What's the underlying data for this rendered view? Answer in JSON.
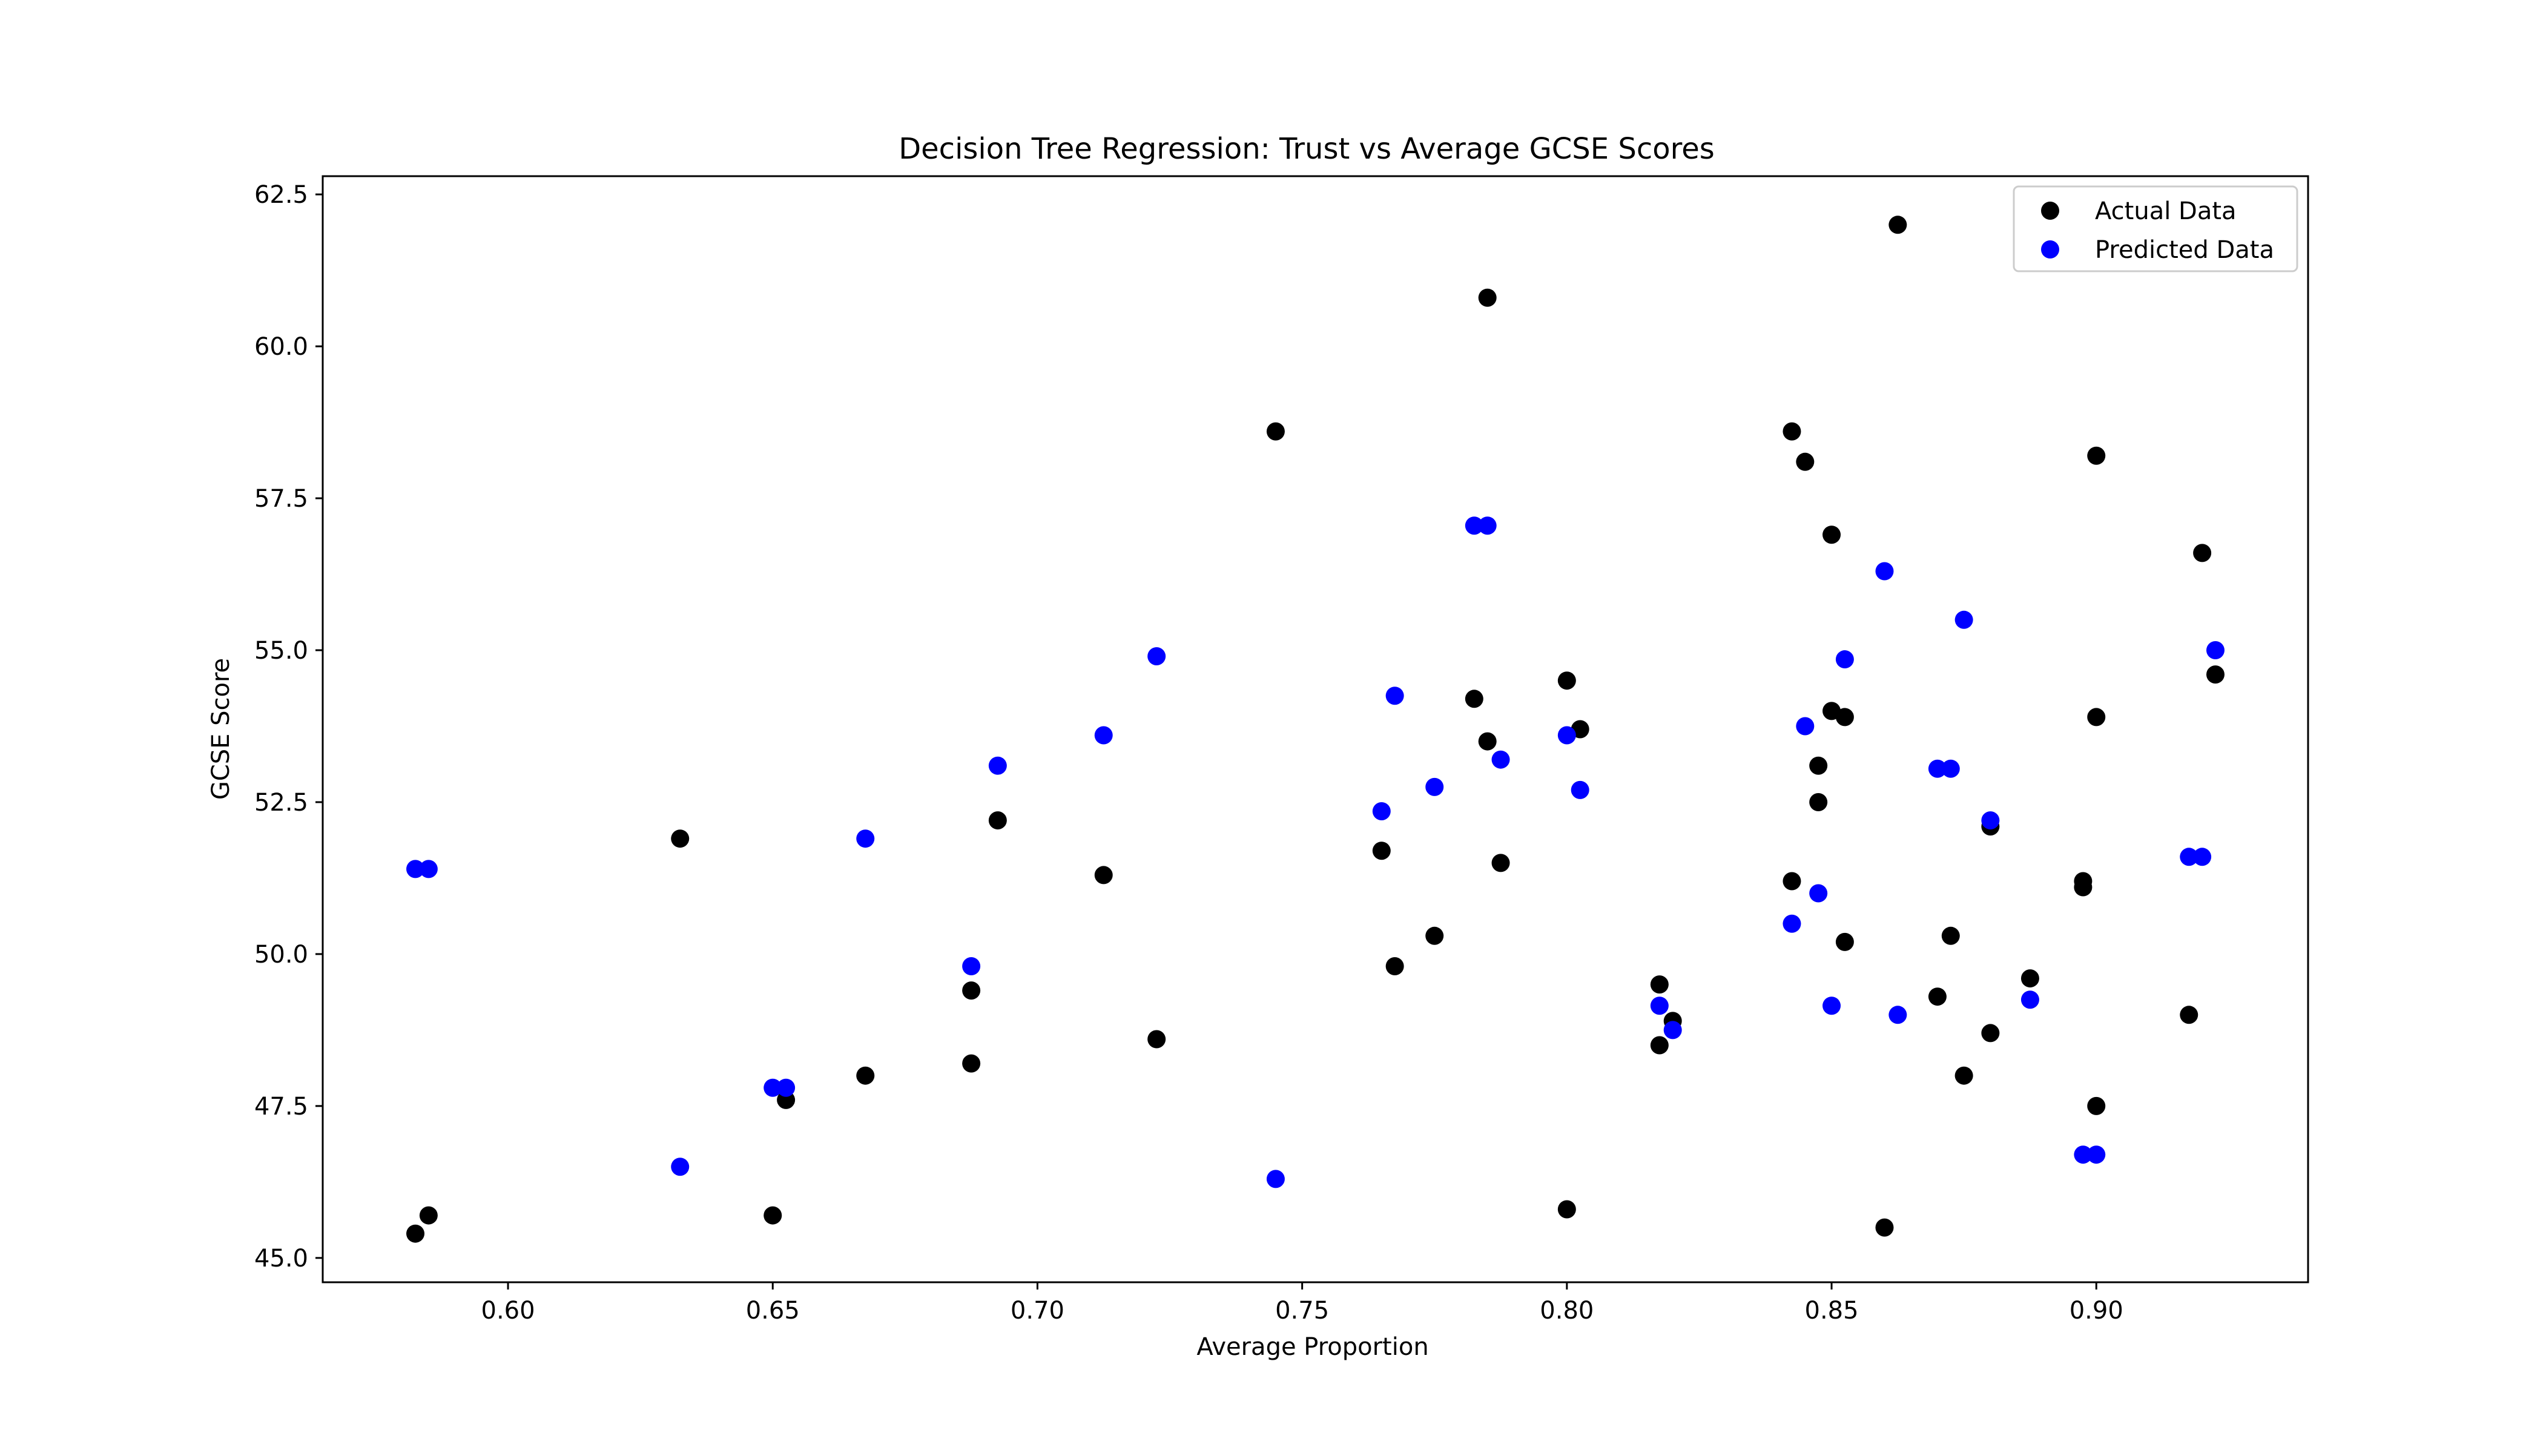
{
  "chart_data": {
    "type": "scatter",
    "title": "Decision Tree Regression: Trust vs Average GCSE Scores",
    "xlabel": "Average Proportion",
    "ylabel": "GCSE Score",
    "xlim": [
      0.565,
      0.94
    ],
    "ylim": [
      44.6,
      62.8
    ],
    "xticks": [
      "0.60",
      "0.65",
      "0.70",
      "0.75",
      "0.80",
      "0.85",
      "0.90"
    ],
    "yticks": [
      "45.0",
      "47.5",
      "50.0",
      "52.5",
      "55.0",
      "57.5",
      "60.0",
      "62.5"
    ],
    "grid": false,
    "legend_position": "top-right",
    "series": [
      {
        "name": "Actual Data",
        "color": "#000000",
        "points": [
          [
            0.5825,
            45.4
          ],
          [
            0.585,
            45.7
          ],
          [
            0.6325,
            51.9
          ],
          [
            0.65,
            45.7
          ],
          [
            0.6525,
            47.6
          ],
          [
            0.6675,
            48.0
          ],
          [
            0.6875,
            48.2
          ],
          [
            0.6875,
            49.4
          ],
          [
            0.6925,
            52.2
          ],
          [
            0.7125,
            51.3
          ],
          [
            0.7225,
            48.6
          ],
          [
            0.745,
            58.6
          ],
          [
            0.765,
            51.7
          ],
          [
            0.7675,
            49.8
          ],
          [
            0.775,
            50.3
          ],
          [
            0.7825,
            54.2
          ],
          [
            0.785,
            53.5
          ],
          [
            0.785,
            60.8
          ],
          [
            0.7875,
            51.5
          ],
          [
            0.8,
            54.5
          ],
          [
            0.8,
            45.8
          ],
          [
            0.8025,
            53.7
          ],
          [
            0.8175,
            49.5
          ],
          [
            0.8175,
            48.5
          ],
          [
            0.82,
            48.9
          ],
          [
            0.8425,
            58.6
          ],
          [
            0.8425,
            51.2
          ],
          [
            0.845,
            58.1
          ],
          [
            0.8475,
            53.1
          ],
          [
            0.8475,
            52.5
          ],
          [
            0.85,
            56.9
          ],
          [
            0.85,
            54.0
          ],
          [
            0.8525,
            53.9
          ],
          [
            0.8525,
            50.2
          ],
          [
            0.86,
            45.5
          ],
          [
            0.8625,
            62.0
          ],
          [
            0.87,
            49.3
          ],
          [
            0.8725,
            50.3
          ],
          [
            0.875,
            48.0
          ],
          [
            0.88,
            52.1
          ],
          [
            0.88,
            48.7
          ],
          [
            0.8875,
            49.6
          ],
          [
            0.8975,
            51.2
          ],
          [
            0.8975,
            51.1
          ],
          [
            0.9,
            58.2
          ],
          [
            0.9,
            53.9
          ],
          [
            0.9,
            47.5
          ],
          [
            0.9175,
            49.0
          ],
          [
            0.92,
            56.6
          ],
          [
            0.9225,
            54.6
          ]
        ]
      },
      {
        "name": "Predicted Data",
        "color": "#0000ff",
        "points": [
          [
            0.5825,
            51.4
          ],
          [
            0.585,
            51.4
          ],
          [
            0.6325,
            46.5
          ],
          [
            0.65,
            47.8
          ],
          [
            0.6525,
            47.8
          ],
          [
            0.6675,
            51.9
          ],
          [
            0.6875,
            49.8
          ],
          [
            0.6925,
            53.1
          ],
          [
            0.7125,
            53.6
          ],
          [
            0.7225,
            54.9
          ],
          [
            0.745,
            46.3
          ],
          [
            0.765,
            52.35
          ],
          [
            0.7675,
            54.25
          ],
          [
            0.775,
            52.75
          ],
          [
            0.7825,
            57.05
          ],
          [
            0.785,
            57.05
          ],
          [
            0.7875,
            53.2
          ],
          [
            0.8,
            53.6
          ],
          [
            0.8025,
            52.7
          ],
          [
            0.8175,
            49.15
          ],
          [
            0.82,
            48.75
          ],
          [
            0.8425,
            50.5
          ],
          [
            0.845,
            53.75
          ],
          [
            0.8475,
            51.0
          ],
          [
            0.85,
            49.15
          ],
          [
            0.8525,
            54.85
          ],
          [
            0.86,
            56.3
          ],
          [
            0.8625,
            49.0
          ],
          [
            0.87,
            53.05
          ],
          [
            0.8725,
            53.05
          ],
          [
            0.875,
            55.5
          ],
          [
            0.88,
            52.2
          ],
          [
            0.8875,
            49.25
          ],
          [
            0.8975,
            46.7
          ],
          [
            0.9,
            46.7
          ],
          [
            0.9175,
            51.6
          ],
          [
            0.92,
            51.6
          ],
          [
            0.9225,
            55.0
          ]
        ]
      }
    ]
  }
}
